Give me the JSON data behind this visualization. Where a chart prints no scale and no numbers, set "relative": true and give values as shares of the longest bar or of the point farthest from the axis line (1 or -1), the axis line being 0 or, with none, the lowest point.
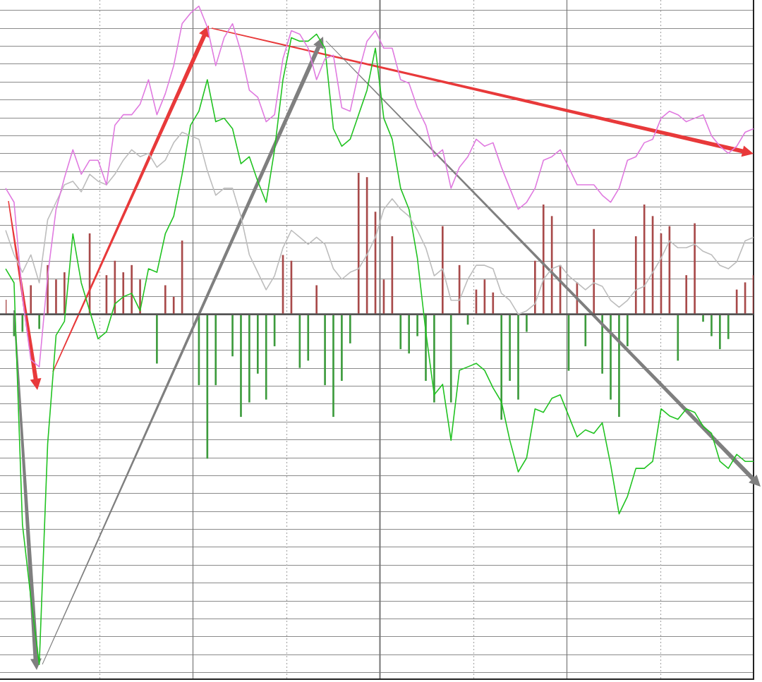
{
  "chart_data": [
    {
      "type": "line",
      "relative": true,
      "categories": [
        null,
        null,
        null,
        null,
        null,
        null,
        null,
        null,
        null,
        null,
        null,
        null,
        null,
        null,
        null,
        null,
        null,
        null,
        null,
        null,
        null,
        null,
        null,
        null,
        null,
        null,
        null,
        null,
        null,
        null,
        null,
        null,
        null,
        null,
        null,
        null,
        null,
        null,
        null,
        null,
        null,
        null,
        null,
        null,
        null,
        null,
        null,
        null,
        null,
        null,
        null,
        null,
        null,
        null,
        null,
        null,
        null,
        null,
        null,
        null,
        null,
        null,
        null,
        null,
        null,
        null,
        null,
        null,
        null,
        null,
        null,
        null,
        null,
        null,
        null,
        null,
        null,
        null,
        null,
        null,
        null,
        null,
        null,
        null,
        null,
        null,
        null,
        null,
        null,
        null
      ],
      "series": [
        {
          "color": "#e07be0",
          "values": [
            0.36,
            0.32,
            0.05,
            -0.13,
            -0.15,
            0.11,
            0.3,
            0.39,
            0.47,
            0.4,
            0.44,
            0.44,
            0.37,
            0.54,
            0.57,
            0.57,
            0.6,
            0.67,
            0.57,
            0.63,
            0.71,
            0.83,
            0.86,
            0.88,
            0.82,
            0.71,
            0.79,
            0.83,
            0.75,
            0.64,
            0.62,
            0.55,
            0.57,
            0.73,
            0.81,
            0.8,
            0.76,
            0.67,
            0.73,
            0.74,
            0.59,
            0.58,
            0.69,
            0.78,
            0.81,
            0.76,
            0.76,
            0.67,
            0.66,
            0.59,
            0.54,
            0.45,
            0.47,
            0.36,
            0.42,
            0.45,
            0.5,
            0.48,
            0.49,
            0.42,
            0.36,
            0.3,
            0.32,
            0.36,
            0.44,
            0.45,
            0.47,
            0.42,
            0.37,
            0.37,
            0.37,
            0.34,
            0.32,
            0.36,
            0.44,
            0.45,
            0.49,
            0.5,
            0.56,
            0.58,
            0.57,
            0.55,
            0.56,
            0.57,
            0.51,
            0.48,
            0.46,
            0.48,
            0.52,
            0.53
          ]
        },
        {
          "color": "#bdbdbd",
          "values": [
            0.24,
            0.17,
            0.12,
            0.17,
            0.09,
            0.27,
            0.32,
            0.37,
            0.38,
            0.35,
            0.4,
            0.38,
            0.37,
            0.4,
            0.44,
            0.47,
            0.45,
            0.46,
            0.42,
            0.44,
            0.49,
            0.52,
            0.51,
            0.5,
            0.41,
            0.34,
            0.36,
            0.36,
            0.28,
            0.17,
            0.12,
            0.07,
            0.11,
            0.19,
            0.24,
            0.22,
            0.2,
            0.22,
            0.2,
            0.13,
            0.1,
            0.12,
            0.13,
            0.17,
            0.22,
            0.3,
            0.33,
            0.3,
            0.28,
            0.24,
            0.19,
            0.11,
            0.13,
            0.04,
            0.04,
            0.1,
            0.14,
            0.14,
            0.13,
            0.06,
            0.04,
            0.0,
            0.01,
            0.03,
            0.1,
            0.13,
            0.14,
            0.11,
            0.09,
            0.07,
            0.09,
            0.08,
            0.04,
            0.02,
            0.04,
            0.07,
            0.08,
            0.12,
            0.16,
            0.21,
            0.19,
            0.19,
            0.2,
            0.18,
            0.17,
            0.14,
            0.13,
            0.15,
            0.21,
            0.22
          ]
        },
        {
          "color": "#22c322",
          "values": [
            0.13,
            0.09,
            -0.6,
            -0.81,
            -1.0,
            -0.37,
            -0.06,
            -0.02,
            0.23,
            0.09,
            0.01,
            -0.07,
            -0.05,
            0.03,
            0.05,
            0.06,
            0.01,
            0.13,
            0.12,
            0.23,
            0.28,
            0.4,
            0.54,
            0.58,
            0.67,
            0.55,
            0.56,
            0.53,
            0.43,
            0.45,
            0.38,
            0.32,
            0.47,
            0.67,
            0.79,
            0.78,
            0.78,
            0.8,
            0.76,
            0.53,
            0.48,
            0.5,
            0.57,
            0.64,
            0.76,
            0.56,
            0.5,
            0.36,
            0.3,
            0.16,
            -0.05,
            -0.23,
            -0.2,
            -0.36,
            -0.16,
            -0.15,
            -0.14,
            -0.16,
            -0.21,
            -0.25,
            -0.36,
            -0.45,
            -0.41,
            -0.27,
            -0.28,
            -0.24,
            -0.23,
            -0.29,
            -0.35,
            -0.33,
            -0.34,
            -0.31,
            -0.43,
            -0.57,
            -0.52,
            -0.44,
            -0.44,
            -0.42,
            -0.27,
            -0.29,
            -0.3,
            -0.27,
            -0.28,
            -0.32,
            -0.34,
            -0.42,
            -0.44,
            -0.4,
            -0.42,
            -0.42
          ]
        }
      ]
    },
    {
      "type": "bar",
      "relative": true,
      "grid": true,
      "categories": [
        null,
        null,
        null,
        null,
        null,
        null,
        null,
        null,
        null,
        null,
        null,
        null,
        null,
        null,
        null,
        null,
        null,
        null,
        null,
        null,
        null,
        null,
        null,
        null,
        null,
        null,
        null,
        null,
        null,
        null,
        null,
        null,
        null,
        null,
        null,
        null,
        null,
        null,
        null,
        null,
        null,
        null,
        null,
        null,
        null,
        null,
        null,
        null,
        null,
        null,
        null,
        null,
        null,
        null,
        null,
        null,
        null,
        null,
        null,
        null,
        null,
        null,
        null,
        null,
        null,
        null,
        null,
        null,
        null,
        null,
        null,
        null,
        null,
        null,
        null,
        null,
        null,
        null,
        null,
        null,
        null,
        null,
        null,
        null,
        null,
        null,
        null,
        null,
        null,
        null
      ],
      "series": [
        {
          "colors": [
            "#a84a4a",
            "#3d9b3d",
            "#3d9b3d",
            "#a84a4a",
            "#3d9b3d",
            "#a84a4a",
            "#a84a4a",
            "#a84a4a",
            "#a84a4a",
            "#a84a4a",
            "#a84a4a",
            "#a84a4a",
            "#a84a4a",
            "#a84a4a",
            "#a84a4a",
            "#a84a4a",
            "#a84a4a",
            "#a84a4a",
            "#3d9b3d",
            "#a84a4a",
            "#a84a4a",
            "#a84a4a",
            "#a84a4a",
            "#3d9b3d",
            "#3d9b3d",
            "#3d9b3d",
            "#a84a4a",
            "#3d9b3d",
            "#3d9b3d",
            "#3d9b3d",
            "#3d9b3d",
            "#3d9b3d",
            "#3d9b3d",
            "#a84a4a",
            "#a84a4a",
            "#3d9b3d",
            "#3d9b3d",
            "#a84a4a",
            "#3d9b3d",
            "#3d9b3d",
            "#3d9b3d",
            "#3d9b3d",
            "#a84a4a",
            "#a84a4a",
            "#a84a4a",
            "#a84a4a",
            "#a84a4a",
            "#3d9b3d",
            "#3d9b3d",
            "#3d9b3d",
            "#3d9b3d",
            "#3d9b3d",
            "#a84a4a",
            "#3d9b3d",
            "#a84a4a",
            "#3d9b3d",
            "#a84a4a",
            "#a84a4a",
            "#a84a4a",
            "#3d9b3d",
            "#3d9b3d",
            "#3d9b3d",
            "#3d9b3d",
            "#a84a4a",
            "#a84a4a",
            "#a84a4a",
            "#a84a4a",
            "#3d9b3d",
            "#a84a4a",
            "#3d9b3d",
            "#a84a4a",
            "#3d9b3d",
            "#3d9b3d",
            "#3d9b3d",
            "#3d9b3d",
            "#a84a4a",
            "#a84a4a",
            "#a84a4a",
            "#a84a4a",
            "#a84a4a",
            "#3d9b3d",
            "#a84a4a",
            "#a84a4a",
            "#3d9b3d",
            "#3d9b3d",
            "#3d9b3d",
            "#3d9b3d",
            "#a84a4a",
            "#a84a4a",
            "#a84a4a"
          ],
          "values": [
            0.1,
            -0.15,
            -0.12,
            0.2,
            -0.1,
            0.34,
            0.24,
            0.29,
            0,
            0,
            0.56,
            0,
            0.27,
            0.37,
            0.29,
            0.34,
            0.24,
            0,
            -0.34,
            0.2,
            0.12,
            0.51,
            0,
            -0.49,
            -1.0,
            -0.49,
            0,
            -0.29,
            -0.71,
            -0.61,
            -0.41,
            -0.59,
            -0.22,
            0.41,
            0.37,
            -0.37,
            -0.32,
            0.2,
            -0.49,
            -0.71,
            -0.46,
            -0.2,
            0.98,
            0.95,
            0.71,
            0.24,
            0.54,
            -0.24,
            -0.27,
            -0.15,
            -0.46,
            -0.61,
            0.61,
            -0.61,
            0.34,
            -0.07,
            0.17,
            0.24,
            0.15,
            -0.73,
            -0.46,
            -0.59,
            -0.12,
            0.37,
            0.76,
            0.68,
            0.34,
            -0.39,
            0.22,
            -0.22,
            0.59,
            -0.41,
            -0.59,
            -0.71,
            -0.22,
            0.54,
            0.76,
            0.68,
            0.56,
            0.61,
            -0.32,
            0.27,
            0.63,
            -0.05,
            -0.15,
            -0.24,
            -0.17,
            0.17,
            0.22,
            0.27
          ]
        }
      ]
    }
  ]
}
